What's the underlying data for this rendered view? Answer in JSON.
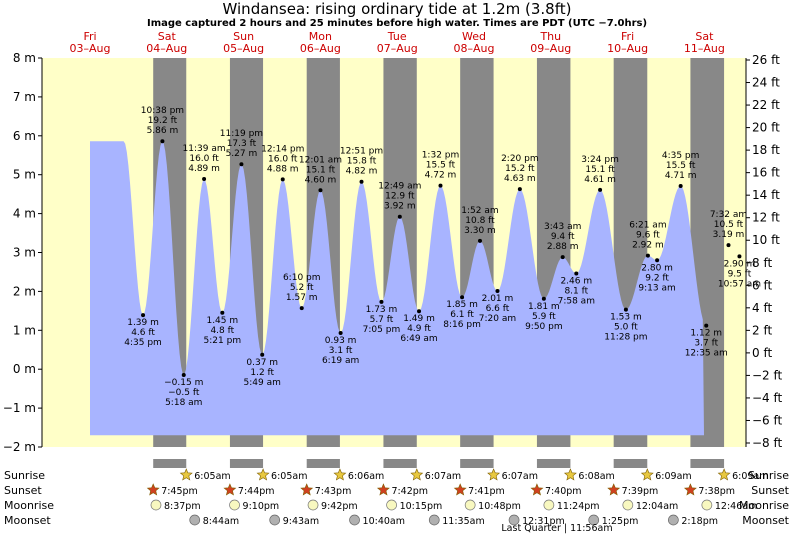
{
  "chart_data": {
    "type": "area",
    "title": "Windansea: rising  ordinary tide at 1.2m (3.8ft)",
    "subtitle": "Image captured 2 hours and 25 minutes before high water. Times are PDT (UTC −7.0hrs)",
    "y_left": {
      "unit": "m",
      "range": [
        -2,
        8
      ],
      "ticks": [
        "−2 m",
        "−1 m",
        "0 m",
        "1 m",
        "2 m",
        "3 m",
        "4 m",
        "5 m",
        "6 m",
        "7 m",
        "8 m"
      ]
    },
    "y_right": {
      "unit": "ft",
      "ticks": [
        "−8 ft",
        "−6 ft",
        "−4 ft",
        "−2 ft",
        "0 ft",
        "2 ft",
        "4 ft",
        "6 ft",
        "8 ft",
        "10 ft",
        "12 ft",
        "14 ft",
        "16 ft",
        "18 ft",
        "20 ft",
        "22 ft",
        "24 ft",
        "26 ft"
      ]
    },
    "days": [
      {
        "day": "Fri",
        "date": "03–Aug"
      },
      {
        "day": "Sat",
        "date": "04–Aug"
      },
      {
        "day": "Sun",
        "date": "05–Aug"
      },
      {
        "day": "Mon",
        "date": "06–Aug"
      },
      {
        "day": "Tue",
        "date": "07–Aug"
      },
      {
        "day": "Wed",
        "date": "08–Aug"
      },
      {
        "day": "Thu",
        "date": "09–Aug"
      },
      {
        "day": "Fri",
        "date": "10–Aug"
      },
      {
        "day": "Sat",
        "date": "11–Aug"
      }
    ],
    "night_intervals_hours": [
      [
        19.75,
        30.08
      ],
      [
        43.73,
        54.08
      ],
      [
        67.72,
        78.1
      ],
      [
        91.7,
        102.12
      ],
      [
        115.68,
        126.12
      ],
      [
        139.67,
        150.13
      ],
      [
        163.65,
        174.15
      ],
      [
        187.63,
        198.15
      ]
    ],
    "current_level_m": 1.2,
    "tide_events": [
      {
        "t": 16.58,
        "m": 1.39,
        "time": "4:35 pm",
        "ft": "4.6 ft",
        "m_label": "1.39 m",
        "above": false
      },
      {
        "t": 22.63,
        "m": 5.86,
        "time": "10:38 pm",
        "ft": "19.2 ft",
        "m_label": "5.86 m",
        "above": true
      },
      {
        "t": 29.3,
        "m": -0.15,
        "time": "5:18 am",
        "ft": "−0.5 ft",
        "m_label": "−0.15 m",
        "above": false
      },
      {
        "t": 35.65,
        "m": 4.89,
        "time": "11:39 am",
        "ft": "16.0 ft",
        "m_label": "4.89 m",
        "above": true
      },
      {
        "t": 41.35,
        "m": 1.45,
        "time": "5:21 pm",
        "ft": "4.8 ft",
        "m_label": "1.45 m",
        "above": false
      },
      {
        "t": 47.32,
        "m": 5.27,
        "time": "11:19 pm",
        "ft": "17.3 ft",
        "m_label": "5.27 m",
        "above": true
      },
      {
        "t": 53.82,
        "m": 0.37,
        "time": "5:49 am",
        "ft": "1.2 ft",
        "m_label": "0.37 m",
        "above": false
      },
      {
        "t": 60.23,
        "m": 4.88,
        "time": "12:14 pm",
        "ft": "16.0 ft",
        "m_label": "4.88 m",
        "above": true
      },
      {
        "t": 66.17,
        "m": 1.57,
        "time": "6:10 pm",
        "ft": "5.2 ft",
        "m_label": "1.57 m",
        "above": true
      },
      {
        "t": 72.02,
        "m": 4.6,
        "time": "12:01 am",
        "ft": "15.1 ft",
        "m_label": "4.60 m",
        "above": true
      },
      {
        "t": 78.32,
        "m": 0.93,
        "time": "6:19 am",
        "ft": "3.1 ft",
        "m_label": "0.93 m",
        "above": false
      },
      {
        "t": 84.85,
        "m": 4.82,
        "time": "12:51 pm",
        "ft": "15.8 ft",
        "m_label": "4.82 m",
        "above": true
      },
      {
        "t": 91.08,
        "m": 1.73,
        "time": "7:05 pm",
        "ft": "5.7 ft",
        "m_label": "1.73 m",
        "above": false
      },
      {
        "t": 96.82,
        "m": 3.92,
        "time": "12:49 am",
        "ft": "12.9 ft",
        "m_label": "3.92 m",
        "above": true
      },
      {
        "t": 102.82,
        "m": 1.49,
        "time": "6:49 am",
        "ft": "4.9 ft",
        "m_label": "1.49 m",
        "above": false
      },
      {
        "t": 109.53,
        "m": 4.72,
        "time": "1:32 pm",
        "ft": "15.5 ft",
        "m_label": "4.72 m",
        "above": true
      },
      {
        "t": 116.27,
        "m": 1.85,
        "time": "8:16 pm",
        "ft": "6.1 ft",
        "m_label": "1.85 m",
        "above": false
      },
      {
        "t": 121.87,
        "m": 3.3,
        "time": "1:52 am",
        "ft": "10.8 ft",
        "m_label": "3.30 m",
        "above": true
      },
      {
        "t": 127.33,
        "m": 2.01,
        "time": "7:20 am",
        "ft": "6.6 ft",
        "m_label": "2.01 m",
        "above": false
      },
      {
        "t": 134.33,
        "m": 4.63,
        "time": "2:20 pm",
        "ft": "15.2 ft",
        "m_label": "4.63 m",
        "above": true
      },
      {
        "t": 141.83,
        "m": 1.81,
        "time": "9:50 pm",
        "ft": "5.9 ft",
        "m_label": "1.81 m",
        "above": false
      },
      {
        "t": 147.72,
        "m": 2.88,
        "time": "3:43 am",
        "ft": "9.4 ft",
        "m_label": "2.88 m",
        "above": true
      },
      {
        "t": 151.97,
        "m": 2.46,
        "time": "7:58 am",
        "ft": "8.1 ft",
        "m_label": "2.46 m",
        "above": false
      },
      {
        "t": 159.4,
        "m": 4.61,
        "time": "3:24 pm",
        "ft": "15.1 ft",
        "m_label": "4.61 m",
        "above": true
      },
      {
        "t": 167.47,
        "m": 1.53,
        "time": "11:28 pm",
        "ft": "5.0 ft",
        "m_label": "1.53 m",
        "above": false
      },
      {
        "t": 174.35,
        "m": 2.92,
        "time": "6:21 am",
        "ft": "9.6 ft",
        "m_label": "2.92 m",
        "above": true
      },
      {
        "t": 177.22,
        "m": 2.8,
        "time": "9:13 am",
        "ft": "9.2 ft",
        "m_label": "2.80 m",
        "above": false
      },
      {
        "t": 184.58,
        "m": 4.71,
        "time": "4:35 pm",
        "ft": "15.5 ft",
        "m_label": "4.71 m",
        "above": true
      },
      {
        "t": 192.58,
        "m": 1.12,
        "time": "12:35 am",
        "ft": "3.7 ft",
        "m_label": "1.12 m",
        "above": false
      },
      {
        "t": 199.53,
        "m": 3.19,
        "time": "7:32 am",
        "ft": "10.5 ft",
        "m_label": "3.19 m",
        "above": true
      },
      {
        "t": 202.95,
        "m": 2.9,
        "time": "10:57 am",
        "ft": "9.5 ft",
        "m_label": "2.90 m",
        "above": false
      }
    ],
    "bottom_rows": {
      "labels": [
        "Sunrise",
        "Sunset",
        "Moonrise",
        "Moonset"
      ],
      "sunrise": [
        {
          "t": 30.08,
          "label": "6:05am"
        },
        {
          "t": 54.08,
          "label": "6:05am"
        },
        {
          "t": 78.1,
          "label": "6:06am"
        },
        {
          "t": 102.12,
          "label": "6:07am"
        },
        {
          "t": 126.12,
          "label": "6:07am"
        },
        {
          "t": 150.13,
          "label": "6:08am"
        },
        {
          "t": 174.15,
          "label": "6:09am"
        },
        {
          "t": 198.15,
          "label": "6:09am"
        }
      ],
      "sunset": [
        {
          "t": 19.75,
          "label": "7:45pm"
        },
        {
          "t": 43.73,
          "label": "7:44pm"
        },
        {
          "t": 67.72,
          "label": "7:43pm"
        },
        {
          "t": 91.7,
          "label": "7:42pm"
        },
        {
          "t": 115.68,
          "label": "7:41pm"
        },
        {
          "t": 139.67,
          "label": "7:40pm"
        },
        {
          "t": 163.65,
          "label": "7:39pm"
        },
        {
          "t": 187.63,
          "label": "7:38pm"
        }
      ],
      "moonrise": [
        {
          "t": 20.62,
          "label": "8:37pm"
        },
        {
          "t": 45.17,
          "label": "9:10pm"
        },
        {
          "t": 69.7,
          "label": "9:42pm"
        },
        {
          "t": 94.25,
          "label": "10:15pm"
        },
        {
          "t": 118.8,
          "label": "10:48pm"
        },
        {
          "t": 143.4,
          "label": "11:24pm"
        },
        {
          "t": 168.07,
          "label": "12:04am"
        },
        {
          "t": 192.77,
          "label": "12:46am"
        }
      ],
      "moonset": [
        {
          "t": 32.73,
          "label": "8:44am"
        },
        {
          "t": 57.72,
          "label": "9:43am"
        },
        {
          "t": 82.67,
          "label": "10:40am"
        },
        {
          "t": 107.58,
          "label": "11:35am"
        },
        {
          "t": 132.52,
          "label": "12:31pm"
        },
        {
          "t": 157.42,
          "label": "1:25pm"
        },
        {
          "t": 182.3,
          "label": "2:18pm"
        }
      ],
      "moon_phase": "Last Quarter | 11:56am"
    },
    "colors": {
      "day": "#ffffc8",
      "night": "#888888",
      "water": "#a8b4ff",
      "sun": "#e8c840",
      "sunset": "#d04020",
      "moon": "#f8f8c0",
      "moonset": "#b0b0b0"
    },
    "grid": false,
    "legend": "none"
  }
}
